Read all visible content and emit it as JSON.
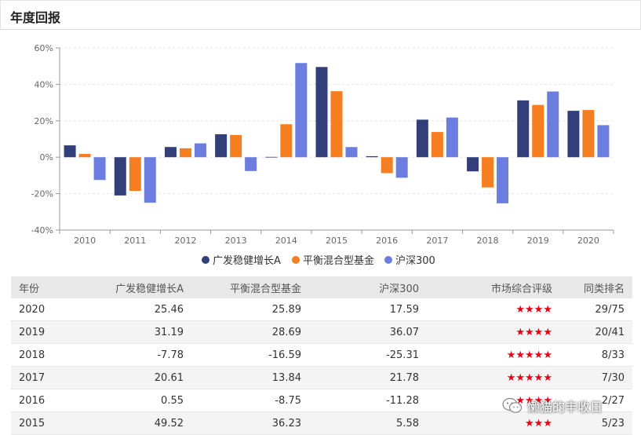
{
  "header": {
    "title": "年度回报"
  },
  "chart_data": {
    "type": "bar",
    "categories": [
      "2010",
      "2011",
      "2012",
      "2013",
      "2014",
      "2015",
      "2016",
      "2017",
      "2018",
      "2019",
      "2020"
    ],
    "series": [
      {
        "name": "广发稳健增长A",
        "color": "#323f7a",
        "values": [
          6.5,
          -21.0,
          5.6,
          12.6,
          0.0,
          49.52,
          0.55,
          20.61,
          -7.78,
          31.19,
          25.46
        ]
      },
      {
        "name": "平衡混合型基金",
        "color": "#f57f20",
        "values": [
          1.8,
          -18.5,
          4.9,
          12.2,
          18.1,
          36.23,
          -8.75,
          13.84,
          -16.59,
          28.69,
          25.89
        ]
      },
      {
        "name": "沪深300",
        "color": "#6b7ee0",
        "values": [
          -12.5,
          -25.0,
          7.6,
          -7.6,
          51.7,
          5.58,
          -11.28,
          21.78,
          -25.31,
          36.07,
          17.59
        ]
      }
    ],
    "ylim": [
      -40,
      60
    ],
    "yticks": [
      "60%",
      "40%",
      "20%",
      "0%",
      "-20%",
      "-40%"
    ],
    "ytick_values": [
      60,
      40,
      20,
      0,
      -20,
      -40
    ],
    "grid": true,
    "legend": "bottom-center"
  },
  "table": {
    "headers": [
      "年份",
      "广发稳健增长A",
      "平衡混合型基金",
      "沪深300",
      "市场综合评级",
      "同类排名"
    ],
    "rows": [
      {
        "year": "2020",
        "fund": "25.46",
        "balanced": "25.89",
        "hs300": "17.59",
        "rating": "★★★★",
        "rank": "29/75"
      },
      {
        "year": "2019",
        "fund": "31.19",
        "balanced": "28.69",
        "hs300": "36.07",
        "rating": "★★★★",
        "rank": "20/41"
      },
      {
        "year": "2018",
        "fund": "-7.78",
        "balanced": "-16.59",
        "hs300": "-25.31",
        "rating": "★★★★★",
        "rank": "8/33"
      },
      {
        "year": "2017",
        "fund": "20.61",
        "balanced": "13.84",
        "hs300": "21.78",
        "rating": "★★★★★",
        "rank": "7/30"
      },
      {
        "year": "2016",
        "fund": "0.55",
        "balanced": "-8.75",
        "hs300": "-11.28",
        "rating": "★★★★",
        "rank": "2/27"
      },
      {
        "year": "2015",
        "fund": "49.52",
        "balanced": "36.23",
        "hs300": "5.58",
        "rating": "★★★",
        "rank": "5/23"
      }
    ]
  },
  "watermark": {
    "text": "懒猫的丰收日",
    "icon": "wechat-icon"
  }
}
